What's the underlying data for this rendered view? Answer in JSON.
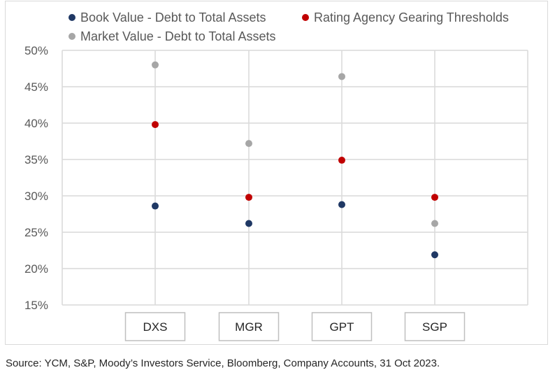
{
  "chart_data": {
    "type": "scatter",
    "categories": [
      "DXS",
      "MGR",
      "GPT",
      "SGP"
    ],
    "series": [
      {
        "name": "Book Value - Debt to Total Assets",
        "color": "#1f3864",
        "values": [
          28.6,
          26.2,
          28.8,
          21.9
        ]
      },
      {
        "name": "Rating Agency Gearing Thresholds",
        "color": "#c00000",
        "values": [
          39.8,
          29.8,
          34.9,
          29.8
        ]
      },
      {
        "name": "Market Value - Debt to Total Assets",
        "color": "#a6a6a6",
        "values": [
          48.0,
          37.2,
          46.4,
          26.2
        ]
      }
    ],
    "ylim": [
      15,
      50
    ],
    "yticks": [
      15,
      20,
      25,
      30,
      35,
      40,
      45,
      50
    ],
    "ytick_suffix": "%",
    "grid": true,
    "legend": "top"
  },
  "source": "Source: YCM, S&P, Moody’s Investors Service, Bloomberg, Company Accounts, 31 Oct 2023."
}
